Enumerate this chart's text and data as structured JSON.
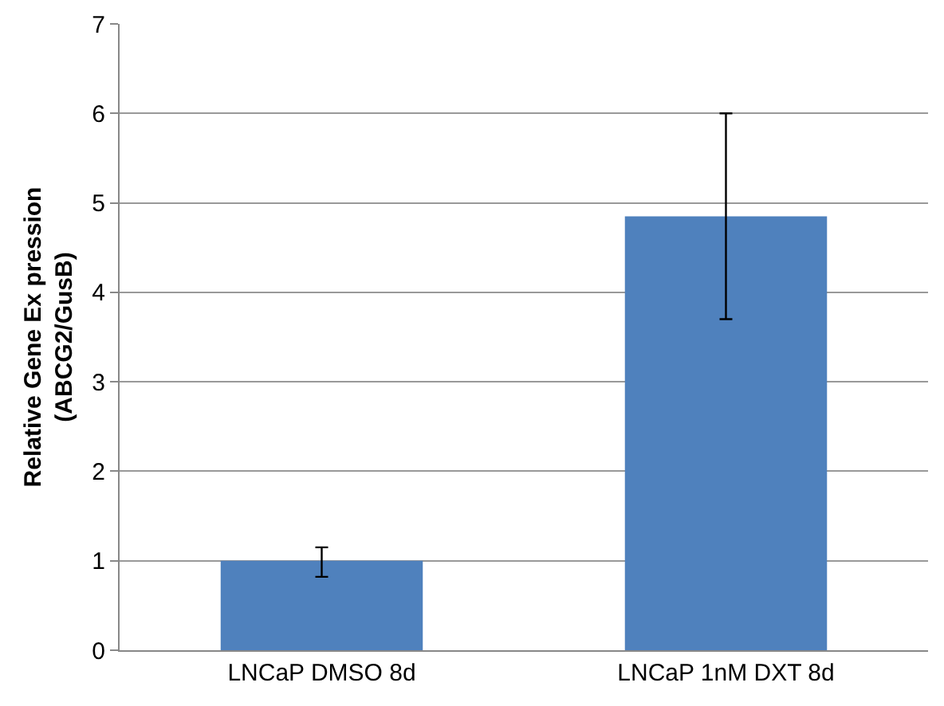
{
  "chart_data": {
    "type": "bar",
    "ylabel": "Relative Gene Ex pression\n(ABCG2/GusB)",
    "categories": [
      "LNCaP DMSO 8d",
      "LNCaP 1nM DXT 8d"
    ],
    "values": [
      1.0,
      4.85
    ],
    "errors": [
      [
        0.82,
        1.15
      ],
      [
        3.7,
        6.0
      ]
    ],
    "color": "#4f81bd",
    "ylim": [
      0,
      7
    ],
    "yticks": [
      0,
      1,
      2,
      3,
      4,
      5,
      6,
      7
    ],
    "grid": "y"
  }
}
